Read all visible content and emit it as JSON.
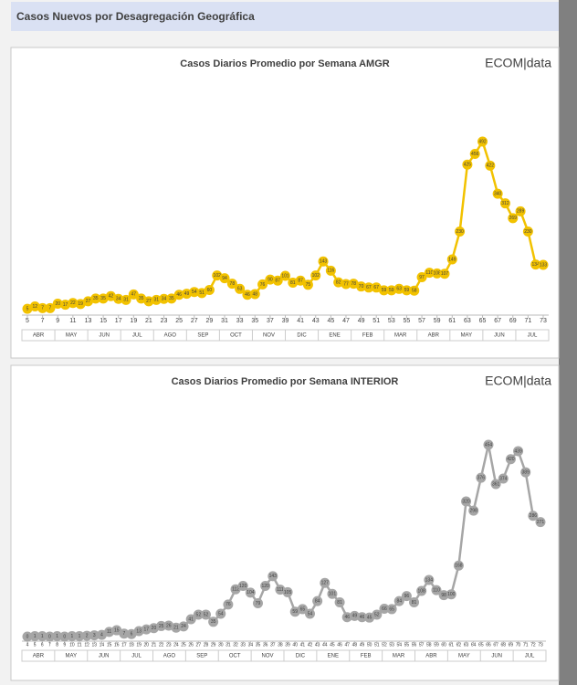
{
  "header": {
    "title": "Casos Nuevos por Desagregación Geográfica"
  },
  "chart_data": [
    {
      "type": "line",
      "title": "Casos Diarios  Promedio por Semana AMGR",
      "logo": "ECOM|data",
      "color": "#f2c200",
      "x": [
        5,
        6,
        7,
        8,
        9,
        10,
        11,
        12,
        13,
        14,
        15,
        16,
        17,
        18,
        19,
        20,
        21,
        22,
        23,
        24,
        25,
        26,
        27,
        28,
        29,
        30,
        31,
        32,
        33,
        34,
        35,
        36,
        37,
        38,
        39,
        40,
        41,
        42,
        43,
        44,
        45,
        46,
        47,
        48,
        49,
        50,
        51,
        52,
        53,
        54,
        55,
        56,
        57,
        58,
        59,
        60,
        61,
        62,
        63,
        64,
        65,
        66,
        67,
        68,
        69,
        70,
        71,
        72,
        73
      ],
      "values": [
        5,
        12,
        7,
        7,
        20,
        17,
        22,
        19,
        27,
        35,
        35,
        42,
        34,
        31,
        47,
        35,
        27,
        31,
        34,
        35,
        46,
        49,
        54,
        51,
        60,
        102,
        94,
        78,
        63,
        46,
        48,
        76,
        90,
        87,
        101,
        81,
        87,
        75,
        102,
        143,
        116,
        82,
        77,
        78,
        70,
        67,
        67,
        59,
        59,
        63,
        59,
        58,
        97,
        110,
        108,
        107,
        149,
        230,
        425,
        456,
        492,
        422,
        340,
        312,
        269,
        289,
        230,
        134,
        133
      ],
      "xticks": [
        5,
        7,
        9,
        11,
        13,
        15,
        17,
        19,
        21,
        23,
        25,
        27,
        29,
        31,
        33,
        35,
        37,
        39,
        41,
        43,
        45,
        47,
        49,
        51,
        53,
        55,
        57,
        59,
        61,
        63,
        65,
        67,
        69,
        71,
        73
      ],
      "months": [
        "ABR",
        "MAY",
        "JUN",
        "JUL",
        "AGO",
        "SEP",
        "OCT",
        "NOV",
        "DIC",
        "ENE",
        "FEB",
        "MAR",
        "ABR",
        "MAY",
        "JUN",
        "JUL"
      ]
    },
    {
      "type": "line",
      "title": "Casos Diarios  Promedio por Semana INTERIOR",
      "logo": "ECOM|data",
      "color": "#a6a6a6",
      "x": [
        4,
        5,
        6,
        7,
        8,
        9,
        10,
        11,
        12,
        13,
        14,
        15,
        16,
        17,
        18,
        19,
        20,
        21,
        22,
        23,
        24,
        25,
        26,
        27,
        28,
        29,
        30,
        31,
        32,
        33,
        34,
        35,
        36,
        37,
        38,
        39,
        40,
        41,
        42,
        43,
        44,
        45,
        46,
        47,
        48,
        49,
        50,
        51,
        52,
        53,
        54,
        55,
        56,
        57,
        58,
        59,
        60,
        61,
        62,
        63,
        64,
        65,
        66,
        67,
        68,
        69,
        70,
        71,
        72,
        73
      ],
      "values": [
        0,
        1,
        1,
        0,
        1,
        0,
        1,
        1,
        2,
        3,
        4,
        11,
        15,
        7,
        6,
        13,
        17,
        20,
        25,
        26,
        21,
        24,
        41,
        52,
        52,
        35,
        54,
        76,
        112,
        120,
        104,
        79,
        120,
        143,
        111,
        105,
        59,
        65,
        54,
        84,
        127,
        101,
        81,
        46,
        49,
        46,
        45,
        52,
        66,
        65,
        84,
        96,
        81,
        108,
        134,
        110,
        98,
        100,
        168,
        320,
        298,
        376,
        454,
        361,
        374,
        420,
        439,
        389,
        286,
        271
      ],
      "xticks": [
        4,
        5,
        6,
        7,
        8,
        9,
        10,
        11,
        12,
        13,
        14,
        15,
        16,
        17,
        18,
        19,
        20,
        21,
        22,
        23,
        24,
        25,
        26,
        27,
        28,
        29,
        30,
        31,
        32,
        33,
        34,
        35,
        36,
        37,
        38,
        39,
        40,
        41,
        42,
        43,
        44,
        45,
        46,
        47,
        48,
        49,
        50,
        51,
        52,
        53,
        54,
        55,
        56,
        57,
        58,
        59,
        60,
        61,
        62,
        63,
        64,
        65,
        66,
        67,
        68,
        69,
        70,
        71,
        72,
        73
      ],
      "months": [
        "ABR",
        "MAY",
        "JUN",
        "JUL",
        "AGO",
        "SEP",
        "OCT",
        "NOV",
        "DIC",
        "ENE",
        "FEB",
        "MAR",
        "ABR",
        "MAY",
        "JUN",
        "JUL"
      ]
    }
  ]
}
